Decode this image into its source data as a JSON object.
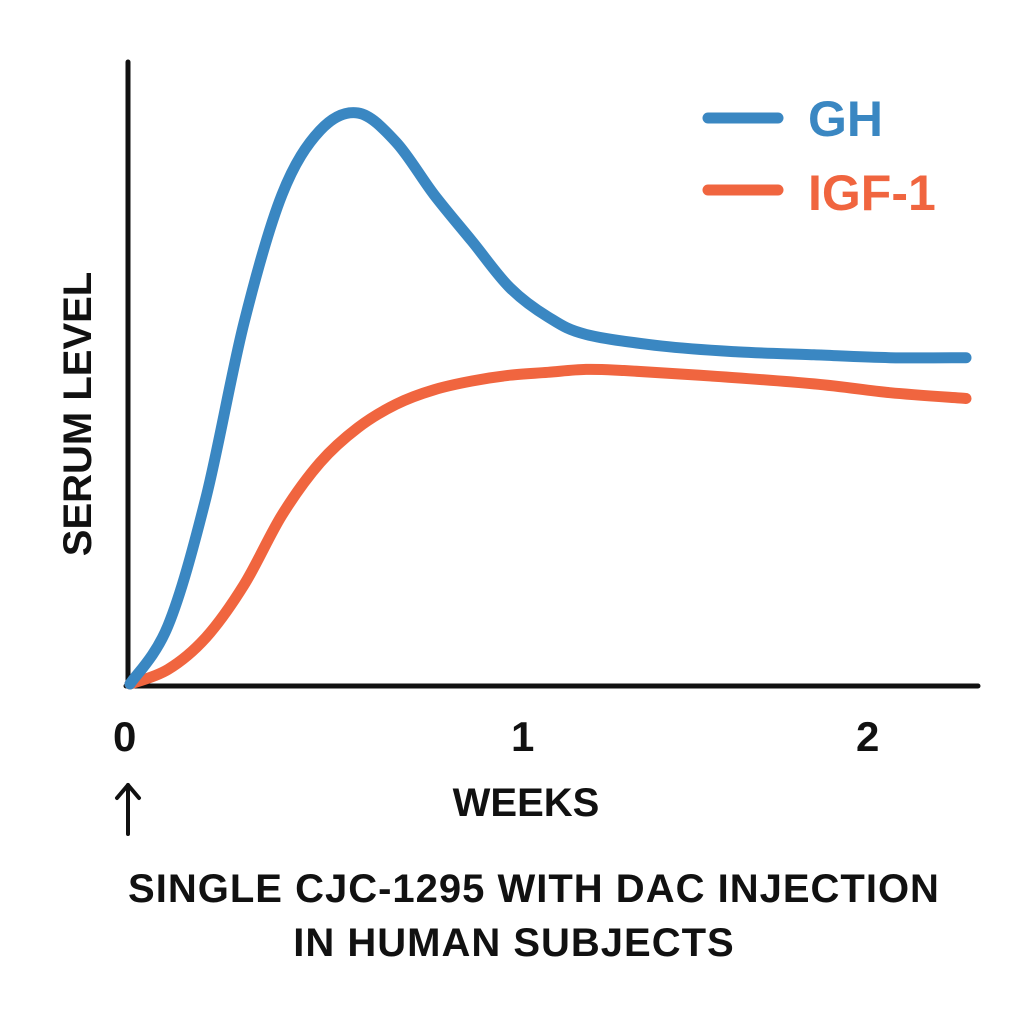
{
  "chart_data": {
    "type": "line",
    "title": "",
    "xlabel": "WEEKS",
    "ylabel": "SERUM LEVEL",
    "xlim": [
      0,
      2.2
    ],
    "ylim": [
      0,
      1
    ],
    "x_ticks": [
      "0",
      "1",
      "2"
    ],
    "y_tick_labels": "none",
    "grid": false,
    "legend_position": "top-right",
    "series": [
      {
        "name": "GH",
        "color": "#3a87c2",
        "points": [
          [
            0,
            0
          ],
          [
            0.1,
            0.1
          ],
          [
            0.2,
            0.32
          ],
          [
            0.3,
            0.62
          ],
          [
            0.4,
            0.84
          ],
          [
            0.5,
            0.95
          ],
          [
            0.6,
            0.98
          ],
          [
            0.7,
            0.93
          ],
          [
            0.8,
            0.84
          ],
          [
            0.9,
            0.76
          ],
          [
            1.0,
            0.68
          ],
          [
            1.1,
            0.63
          ],
          [
            1.2,
            0.6
          ],
          [
            1.4,
            0.58
          ],
          [
            1.6,
            0.57
          ],
          [
            1.8,
            0.565
          ],
          [
            2.0,
            0.56
          ],
          [
            2.2,
            0.56
          ]
        ]
      },
      {
        "name": "IGF-1",
        "color": "#f0653f",
        "points": [
          [
            0,
            0
          ],
          [
            0.1,
            0.025
          ],
          [
            0.2,
            0.08
          ],
          [
            0.3,
            0.17
          ],
          [
            0.4,
            0.29
          ],
          [
            0.5,
            0.38
          ],
          [
            0.6,
            0.44
          ],
          [
            0.7,
            0.48
          ],
          [
            0.8,
            0.505
          ],
          [
            0.9,
            0.52
          ],
          [
            1.0,
            0.53
          ],
          [
            1.1,
            0.535
          ],
          [
            1.2,
            0.54
          ],
          [
            1.3,
            0.538
          ],
          [
            1.5,
            0.53
          ],
          [
            1.8,
            0.515
          ],
          [
            2.0,
            0.5
          ],
          [
            2.2,
            0.49
          ]
        ]
      }
    ]
  },
  "caption": {
    "line1": "SINGLE CJC-1295 WITH DAC INJECTION",
    "line2": "IN HUMAN SUBJECTS"
  },
  "annotation": {
    "arrow_icon": "up-arrow-icon"
  }
}
